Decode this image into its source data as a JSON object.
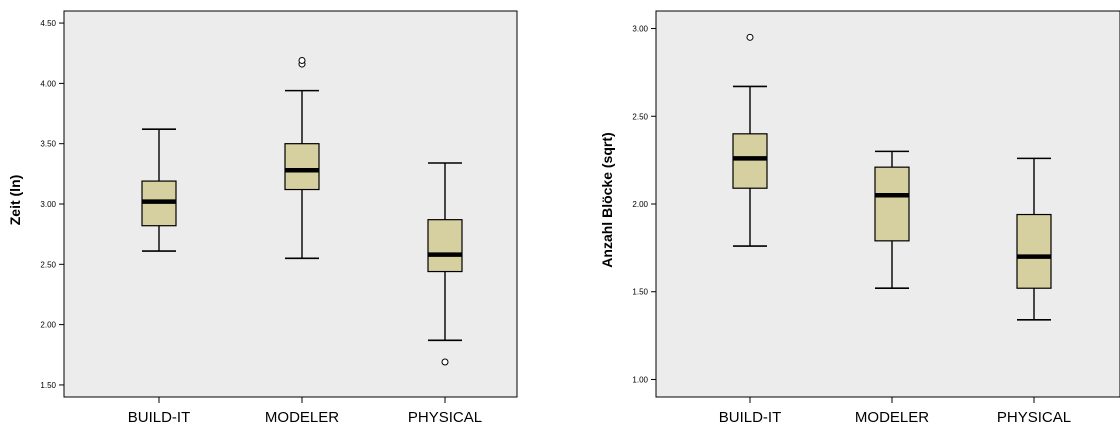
{
  "chart_data": [
    {
      "type": "box",
      "ylabel": "Zeit (ln)",
      "xlabel": "",
      "ylim": [
        1.4,
        4.6
      ],
      "yticks": [
        "1.50",
        "2.00",
        "2.50",
        "3.00",
        "3.50",
        "4.00",
        "4.50"
      ],
      "categories": [
        "BUILD-IT",
        "MODELER",
        "PHYSICAL"
      ],
      "box_fill": "#d6cfa0",
      "plot_background": "#ececec",
      "boxes": [
        {
          "category": "BUILD-IT",
          "whisker_low": 2.61,
          "q1": 2.82,
          "median": 3.02,
          "q3": 3.19,
          "whisker_high": 3.62,
          "outliers": []
        },
        {
          "category": "MODELER",
          "whisker_low": 2.55,
          "q1": 3.12,
          "median": 3.28,
          "q3": 3.5,
          "whisker_high": 3.94,
          "outliers": [
            4.16,
            4.19
          ]
        },
        {
          "category": "PHYSICAL",
          "whisker_low": 1.87,
          "q1": 2.44,
          "median": 2.58,
          "q3": 2.87,
          "whisker_high": 3.34,
          "outliers": [
            1.69
          ]
        }
      ]
    },
    {
      "type": "box",
      "ylabel": "Anzahl Blöcke (sqrt)",
      "xlabel": "",
      "ylim": [
        0.9,
        3.1
      ],
      "yticks": [
        "1.00",
        "1.50",
        "2.00",
        "2.50",
        "3.00"
      ],
      "categories": [
        "BUILD-IT",
        "MODELER",
        "PHYSICAL"
      ],
      "box_fill": "#d6cfa0",
      "plot_background": "#ececec",
      "boxes": [
        {
          "category": "BUILD-IT",
          "whisker_low": 1.76,
          "q1": 2.09,
          "median": 2.26,
          "q3": 2.4,
          "whisker_high": 2.67,
          "outliers": [
            2.95
          ]
        },
        {
          "category": "MODELER",
          "whisker_low": 1.52,
          "q1": 1.79,
          "median": 2.05,
          "q3": 2.21,
          "whisker_high": 2.3,
          "outliers": []
        },
        {
          "category": "PHYSICAL",
          "whisker_low": 1.34,
          "q1": 1.52,
          "median": 1.7,
          "q3": 1.94,
          "whisker_high": 2.26,
          "outliers": []
        }
      ]
    }
  ]
}
